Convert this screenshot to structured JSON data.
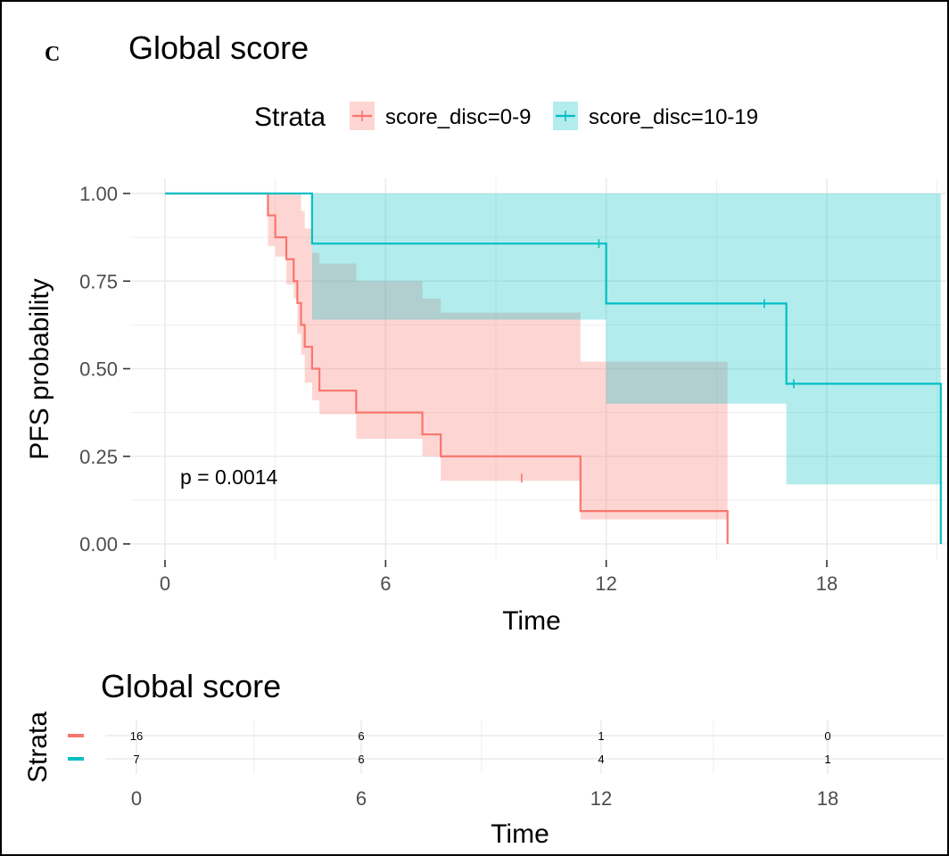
{
  "panel_letter": "C",
  "chart_data": [
    {
      "type": "line",
      "subtype": "kaplan-meier",
      "title": "Global score",
      "xlabel": "Time",
      "ylabel": "PFS probability",
      "xlim": [
        0,
        21.3
      ],
      "ylim": [
        0,
        1
      ],
      "xticks": [
        0,
        6,
        12,
        18
      ],
      "yticks": [
        0.0,
        0.25,
        0.5,
        0.75,
        1.0
      ],
      "ytick_labels": [
        "0.00",
        "0.25",
        "0.50",
        "0.75",
        "1.00"
      ],
      "grid": true,
      "legend": {
        "title": "Strata",
        "placement": "top"
      },
      "annotation": "p = 0.0014",
      "series": [
        {
          "name": "score_disc=0-9",
          "color": "#F8766D",
          "ci_color": "#F8766D",
          "steps": [
            [
              0,
              1.0
            ],
            [
              2.8,
              0.9375
            ],
            [
              3.0,
              0.875
            ],
            [
              3.3,
              0.8125
            ],
            [
              3.5,
              0.75
            ],
            [
              3.6,
              0.6875
            ],
            [
              3.7,
              0.625
            ],
            [
              3.8,
              0.5625
            ],
            [
              4.0,
              0.5
            ],
            [
              4.2,
              0.4375
            ],
            [
              5.2,
              0.375
            ],
            [
              7.0,
              0.3125
            ],
            [
              7.5,
              0.25
            ],
            [
              11.3,
              0.0938
            ],
            [
              15.3,
              0.0
            ]
          ],
          "ci": [
            [
              0,
              1,
              1
            ],
            [
              2.8,
              0.85,
              1.0
            ],
            [
              3.0,
              0.82,
              1.0
            ],
            [
              3.3,
              0.74,
              1.0
            ],
            [
              3.5,
              0.7,
              1.0
            ],
            [
              3.6,
              0.6,
              1.0
            ],
            [
              3.7,
              0.54,
              0.95
            ],
            [
              3.8,
              0.46,
              0.9
            ],
            [
              4.0,
              0.41,
              0.83
            ],
            [
              4.2,
              0.37,
              0.8
            ],
            [
              5.2,
              0.3,
              0.75
            ],
            [
              7.0,
              0.25,
              0.7
            ],
            [
              7.5,
              0.18,
              0.66
            ],
            [
              11.3,
              0.07,
              0.52
            ],
            [
              15.3,
              0.0,
              0.52
            ]
          ],
          "censored": [
            [
              9.7,
              0.1875
            ]
          ]
        },
        {
          "name": "score_disc=10-19",
          "color": "#00BFC4",
          "ci_color": "#00BFC4",
          "steps": [
            [
              0,
              1.0
            ],
            [
              4.0,
              0.857
            ],
            [
              12.0,
              0.686
            ],
            [
              16.9,
              0.457
            ],
            [
              21.1,
              0.0
            ]
          ],
          "ci": [
            [
              0,
              1,
              1
            ],
            [
              4.0,
              0.64,
              1.0
            ],
            [
              12.0,
              0.4,
              1.0
            ],
            [
              16.9,
              0.17,
              1.0
            ],
            [
              21.1,
              0.17,
              1.0
            ]
          ],
          "censored": [
            [
              11.8,
              0.857
            ],
            [
              16.3,
              0.686
            ],
            [
              17.1,
              0.457
            ]
          ]
        }
      ]
    },
    {
      "type": "table",
      "title": "Global score",
      "xlabel": "Time",
      "ylabel": "Strata",
      "x": [
        0,
        6,
        12,
        18
      ],
      "rows": [
        {
          "color": "#F8766D",
          "values": [
            "16",
            "6",
            "1",
            "0"
          ]
        },
        {
          "color": "#00BFC4",
          "values": [
            "7",
            "6",
            "4",
            "1"
          ]
        }
      ]
    }
  ]
}
